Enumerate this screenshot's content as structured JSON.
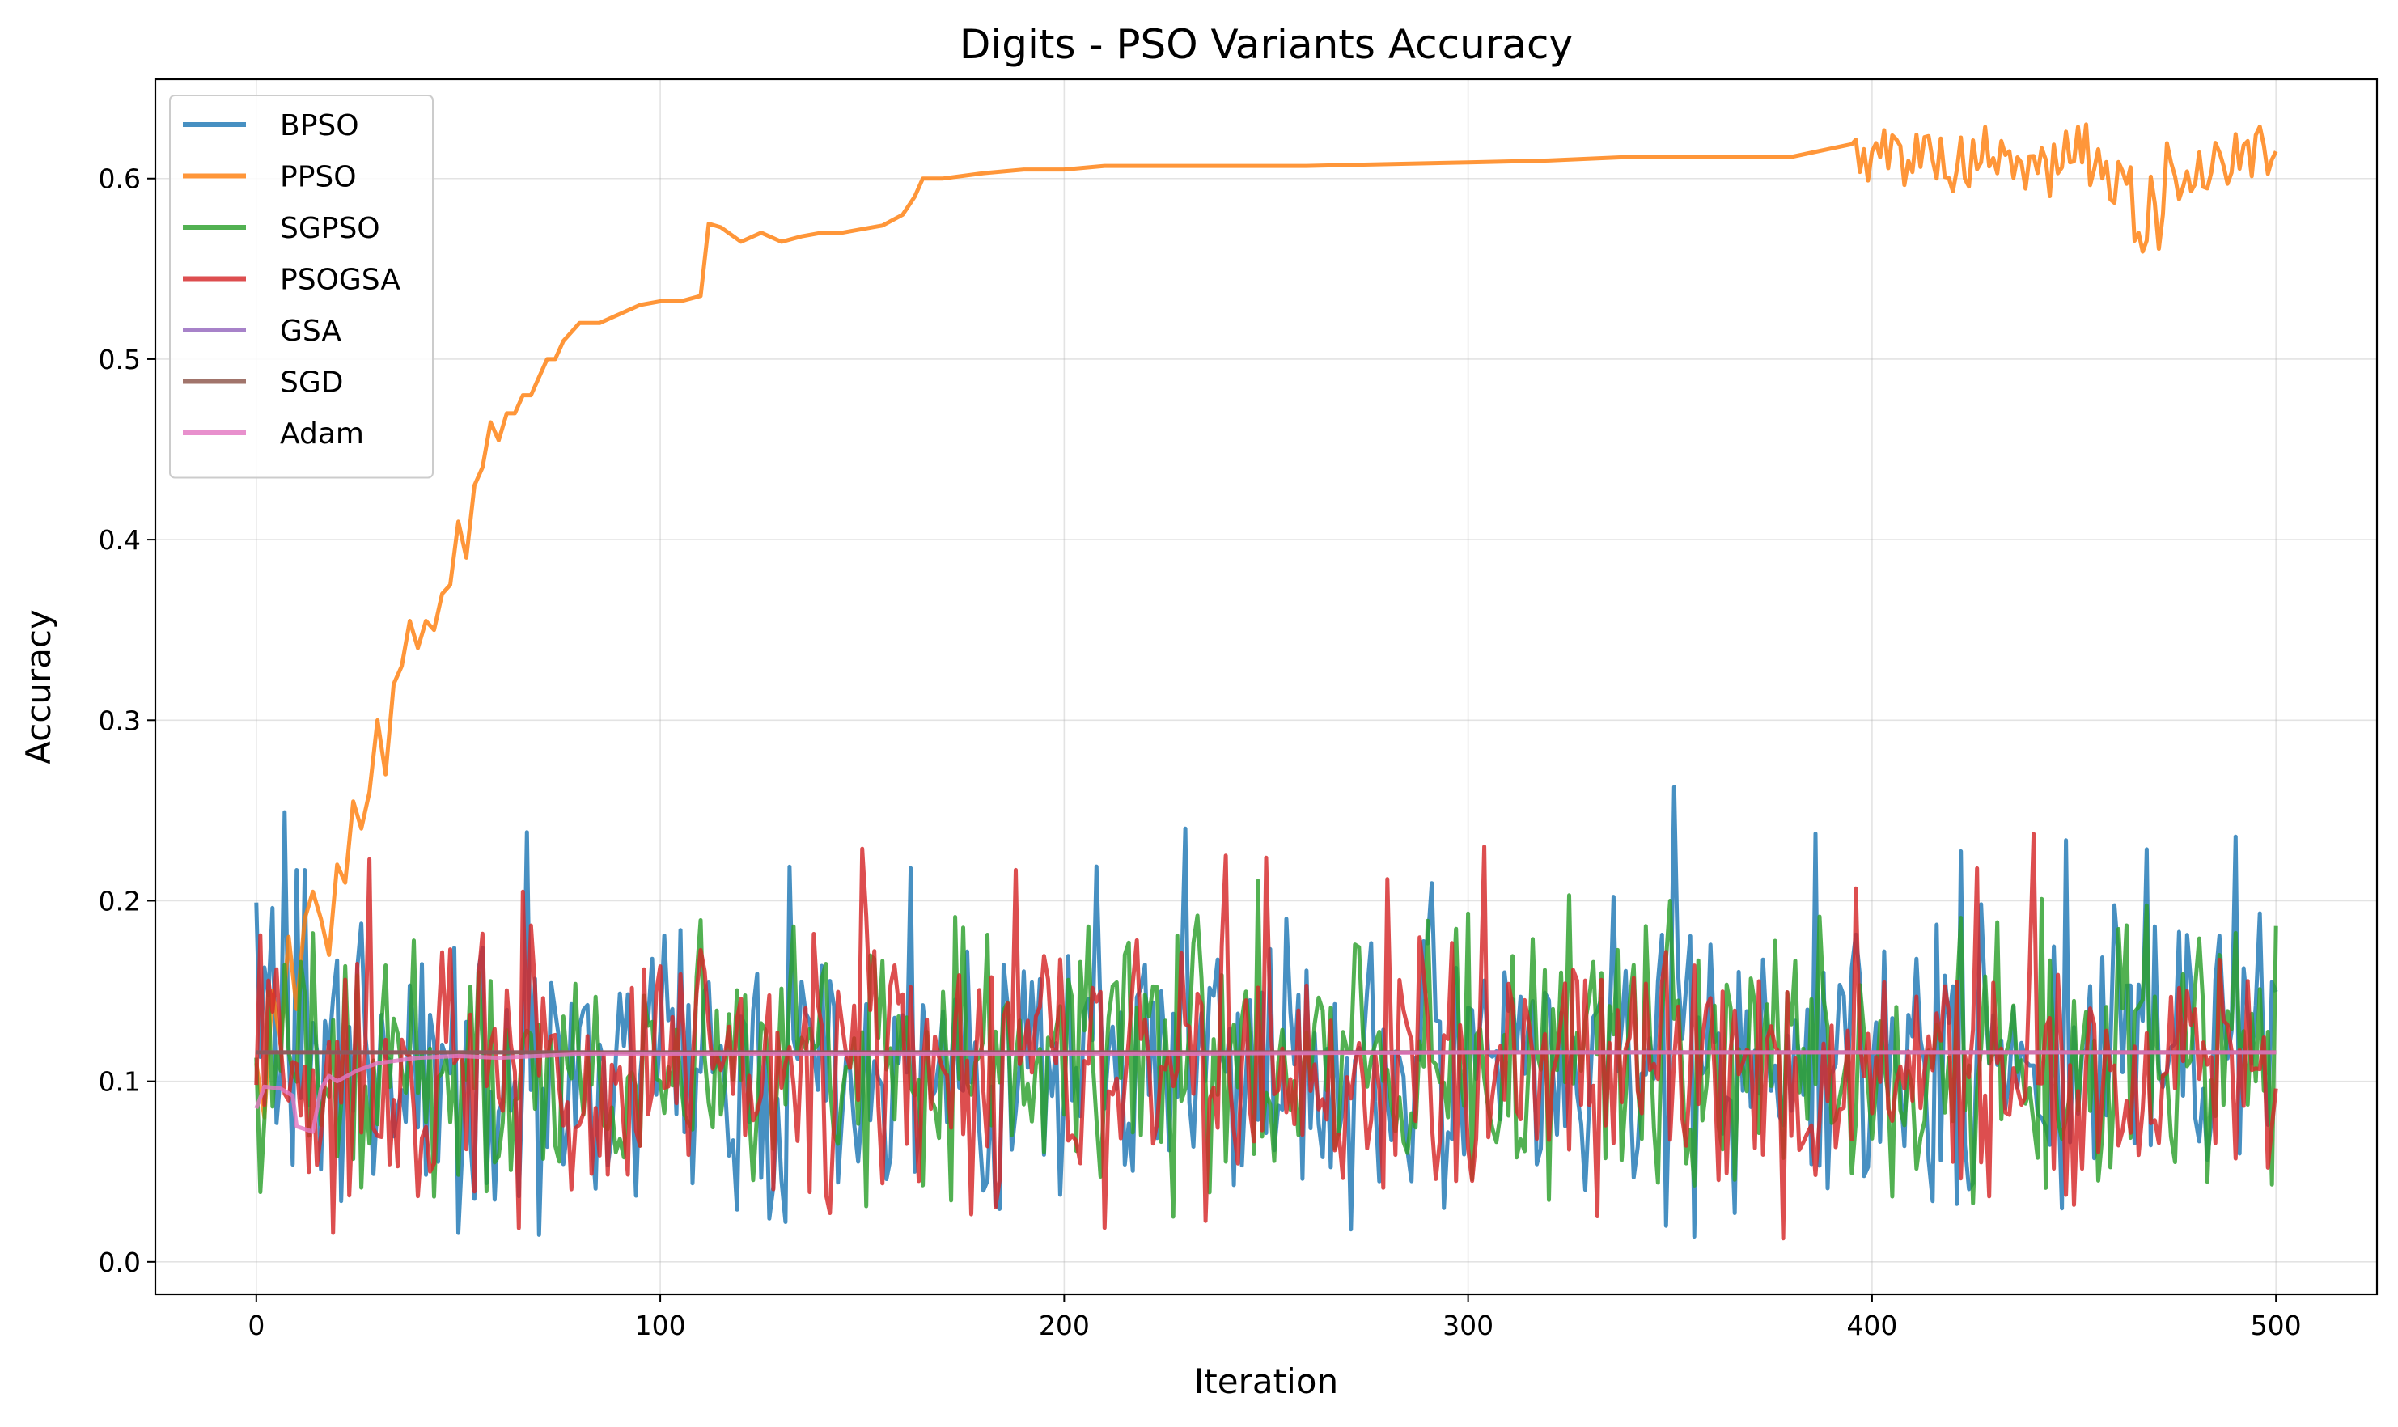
{
  "chart_data": {
    "type": "line",
    "title": "Digits - PSO Variants Accuracy",
    "xlabel": "Iteration",
    "ylabel": "Accuracy",
    "xlim": [
      -25,
      525
    ],
    "ylim": [
      -0.018,
      0.655
    ],
    "xticks": [
      0,
      100,
      200,
      300,
      400,
      500
    ],
    "yticks": [
      0.0,
      0.1,
      0.2,
      0.3,
      0.4,
      0.5,
      0.6
    ],
    "grid": true,
    "legend_position": "top-left",
    "series": [
      {
        "name": "BPSO",
        "color": "#1f77b4",
        "noise": {
          "seed": 11,
          "start": [
            0,
            0.199
          ],
          "lo": 0.015,
          "hi": 0.25,
          "center": 0.11
        },
        "peaks": [
          [
            0,
            0.199
          ],
          [
            2,
            0.163
          ],
          [
            4,
            0.196
          ],
          [
            7,
            0.249
          ],
          [
            10,
            0.217
          ],
          [
            12,
            0.217
          ],
          [
            50,
            0.016
          ],
          [
            67,
            0.238
          ],
          [
            70,
            0.015
          ],
          [
            127,
            0.024
          ],
          [
            208,
            0.219
          ],
          [
            271,
            0.018
          ],
          [
            351,
            0.263
          ],
          [
            356,
            0.014
          ],
          [
            427,
            0.198
          ],
          [
            496,
            0.193
          ]
        ],
        "x_end": 500
      },
      {
        "name": "PPSO",
        "color": "#ff7f0e",
        "points": [
          [
            0,
            0.11
          ],
          [
            2,
            0.08
          ],
          [
            4,
            0.15
          ],
          [
            6,
            0.12
          ],
          [
            8,
            0.18
          ],
          [
            10,
            0.14
          ],
          [
            12,
            0.19
          ],
          [
            14,
            0.205
          ],
          [
            16,
            0.19
          ],
          [
            18,
            0.17
          ],
          [
            20,
            0.22
          ],
          [
            22,
            0.21
          ],
          [
            24,
            0.255
          ],
          [
            26,
            0.24
          ],
          [
            28,
            0.26
          ],
          [
            30,
            0.3
          ],
          [
            32,
            0.27
          ],
          [
            34,
            0.32
          ],
          [
            36,
            0.33
          ],
          [
            38,
            0.355
          ],
          [
            40,
            0.34
          ],
          [
            42,
            0.355
          ],
          [
            44,
            0.35
          ],
          [
            46,
            0.37
          ],
          [
            48,
            0.375
          ],
          [
            50,
            0.41
          ],
          [
            52,
            0.39
          ],
          [
            54,
            0.43
          ],
          [
            56,
            0.44
          ],
          [
            58,
            0.465
          ],
          [
            60,
            0.455
          ],
          [
            62,
            0.47
          ],
          [
            64,
            0.47
          ],
          [
            66,
            0.48
          ],
          [
            68,
            0.48
          ],
          [
            70,
            0.49
          ],
          [
            72,
            0.5
          ],
          [
            74,
            0.5
          ],
          [
            76,
            0.51
          ],
          [
            78,
            0.515
          ],
          [
            80,
            0.52
          ],
          [
            85,
            0.52
          ],
          [
            90,
            0.525
          ],
          [
            95,
            0.53
          ],
          [
            100,
            0.532
          ],
          [
            105,
            0.532
          ],
          [
            110,
            0.535
          ],
          [
            112,
            0.575
          ],
          [
            115,
            0.573
          ],
          [
            120,
            0.565
          ],
          [
            125,
            0.57
          ],
          [
            130,
            0.565
          ],
          [
            135,
            0.568
          ],
          [
            140,
            0.57
          ],
          [
            145,
            0.57
          ],
          [
            150,
            0.572
          ],
          [
            155,
            0.574
          ],
          [
            160,
            0.58
          ],
          [
            163,
            0.59
          ],
          [
            165,
            0.6
          ],
          [
            170,
            0.6
          ],
          [
            180,
            0.603
          ],
          [
            190,
            0.605
          ],
          [
            200,
            0.605
          ],
          [
            210,
            0.607
          ],
          [
            220,
            0.607
          ],
          [
            230,
            0.607
          ],
          [
            250,
            0.607
          ],
          [
            260,
            0.607
          ],
          [
            280,
            0.608
          ],
          [
            300,
            0.609
          ],
          [
            320,
            0.61
          ],
          [
            340,
            0.612
          ],
          [
            350,
            0.612
          ],
          [
            360,
            0.612
          ],
          [
            380,
            0.612
          ],
          [
            395,
            0.613
          ],
          [
            400,
            0.612
          ],
          [
            405,
            0.615
          ],
          [
            410,
            0.61
          ],
          [
            415,
            0.618
          ],
          [
            420,
            0.605
          ],
          [
            425,
            0.61
          ],
          [
            430,
            0.615
          ],
          [
            435,
            0.6
          ],
          [
            440,
            0.61
          ],
          [
            445,
            0.605
          ],
          [
            450,
            0.62
          ],
          [
            455,
            0.61
          ],
          [
            460,
            0.6
          ],
          [
            463,
            0.605
          ],
          [
            465,
            0.58
          ],
          [
            467,
            0.545
          ],
          [
            469,
            0.6
          ],
          [
            471,
            0.55
          ],
          [
            473,
            0.605
          ],
          [
            475,
            0.6
          ],
          [
            480,
            0.605
          ],
          [
            485,
            0.61
          ],
          [
            490,
            0.61
          ],
          [
            495,
            0.615
          ],
          [
            500,
            0.615
          ]
        ],
        "jitter": {
          "seed": 5,
          "from": 395,
          "amp": 0.016
        }
      },
      {
        "name": "SGPSO",
        "color": "#2ca02c",
        "noise": {
          "seed": 23,
          "start": [
            0,
            0.113
          ],
          "lo": 0.02,
          "hi": 0.21,
          "center": 0.11
        },
        "peaks": [
          [
            248,
            0.211
          ],
          [
            325,
            0.203
          ],
          [
            350,
            0.2
          ],
          [
            442,
            0.201
          ],
          [
            500,
            0.186
          ]
        ],
        "x_end": 500
      },
      {
        "name": "PSOGSA",
        "color": "#d62728",
        "noise": {
          "seed": 37,
          "start": [
            0,
            0.098
          ],
          "lo": 0.013,
          "hi": 0.24,
          "center": 0.105
        },
        "peaks": [
          [
            19,
            0.016
          ],
          [
            66,
            0.205
          ],
          [
            240,
            0.225
          ],
          [
            280,
            0.212
          ],
          [
            378,
            0.013
          ],
          [
            440,
            0.237
          ],
          [
            500,
            0.096
          ]
        ],
        "x_end": 500
      },
      {
        "name": "GSA",
        "color": "#9467bd",
        "points": [
          [
            0,
            0.116
          ],
          [
            500,
            0.116
          ]
        ]
      },
      {
        "name": "SGD",
        "color": "#8c564b",
        "points": [
          [
            0,
            0.116
          ],
          [
            500,
            0.116
          ]
        ]
      },
      {
        "name": "Adam",
        "color": "#e377c2",
        "points": [
          [
            0,
            0.085
          ],
          [
            2,
            0.097
          ],
          [
            6,
            0.096
          ],
          [
            9,
            0.092
          ],
          [
            10,
            0.075
          ],
          [
            14,
            0.072
          ],
          [
            16,
            0.096
          ],
          [
            18,
            0.103
          ],
          [
            20,
            0.1
          ],
          [
            25,
            0.106
          ],
          [
            30,
            0.11
          ],
          [
            40,
            0.113
          ],
          [
            50,
            0.114
          ],
          [
            60,
            0.113
          ],
          [
            70,
            0.114
          ],
          [
            80,
            0.115
          ],
          [
            100,
            0.115
          ],
          [
            150,
            0.115
          ],
          [
            200,
            0.115
          ],
          [
            300,
            0.116
          ],
          [
            400,
            0.116
          ],
          [
            500,
            0.116
          ]
        ]
      }
    ]
  }
}
